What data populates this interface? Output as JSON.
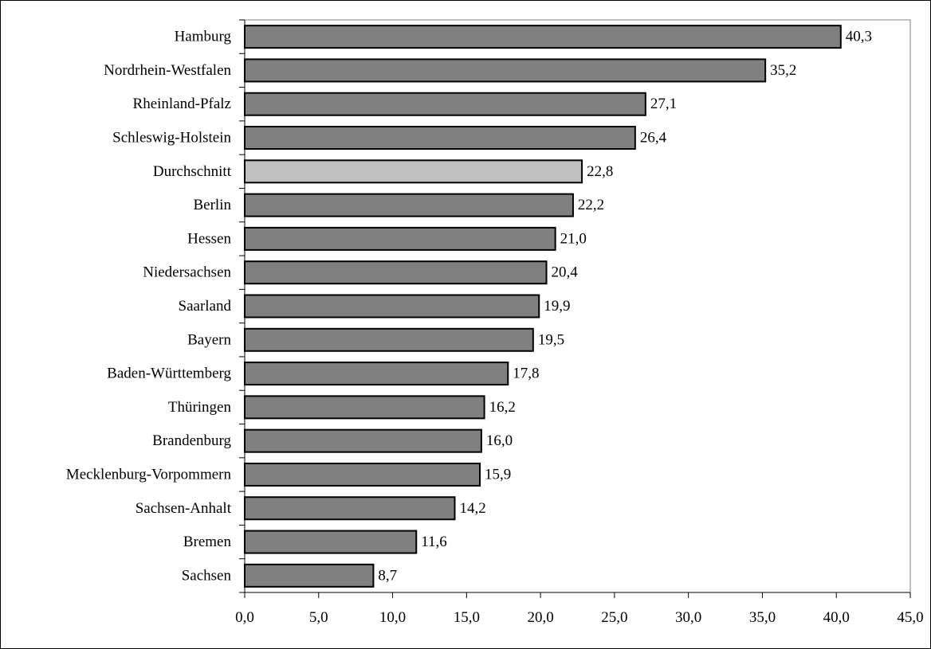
{
  "chart_data": {
    "type": "bar",
    "orientation": "horizontal",
    "title": "",
    "xlabel": "",
    "ylabel": "",
    "categories": [
      "Hamburg",
      "Nordrhein-Westfalen",
      "Rheinland-Pfalz",
      "Schleswig-Holstein",
      "Durchschnitt",
      "Berlin",
      "Hessen",
      "Niedersachsen",
      "Saarland",
      "Bayern",
      "Baden-Württemberg",
      "Thüringen",
      "Brandenburg",
      "Mecklenburg-Vorpommern",
      "Sachsen-Anhalt",
      "Bremen",
      "Sachsen"
    ],
    "values": [
      40.3,
      35.2,
      27.1,
      26.4,
      22.8,
      22.2,
      21.0,
      20.4,
      19.9,
      19.5,
      17.8,
      16.2,
      16.0,
      15.9,
      14.2,
      11.6,
      8.7
    ],
    "value_labels": [
      "40,3",
      "35,2",
      "27,1",
      "26,4",
      "22,8",
      "22,2",
      "21,0",
      "20,4",
      "19,9",
      "19,5",
      "17,8",
      "16,2",
      "16,0",
      "15,9",
      "14,2",
      "11,6",
      "8,7"
    ],
    "highlight_category": "Durchschnitt",
    "xlim": [
      0,
      45
    ],
    "x_ticks": [
      0,
      5,
      10,
      15,
      20,
      25,
      30,
      35,
      40,
      45
    ],
    "x_tick_labels": [
      "0,0",
      "5,0",
      "10,0",
      "15,0",
      "20,0",
      "25,0",
      "30,0",
      "35,0",
      "40,0",
      "45,0"
    ],
    "grid": false,
    "legend": "none",
    "colors": {
      "bar": "#808080",
      "highlight": "#c0c0c0",
      "bar_stroke": "#000000",
      "plot_border": "#808080",
      "axis": "#000000"
    }
  }
}
